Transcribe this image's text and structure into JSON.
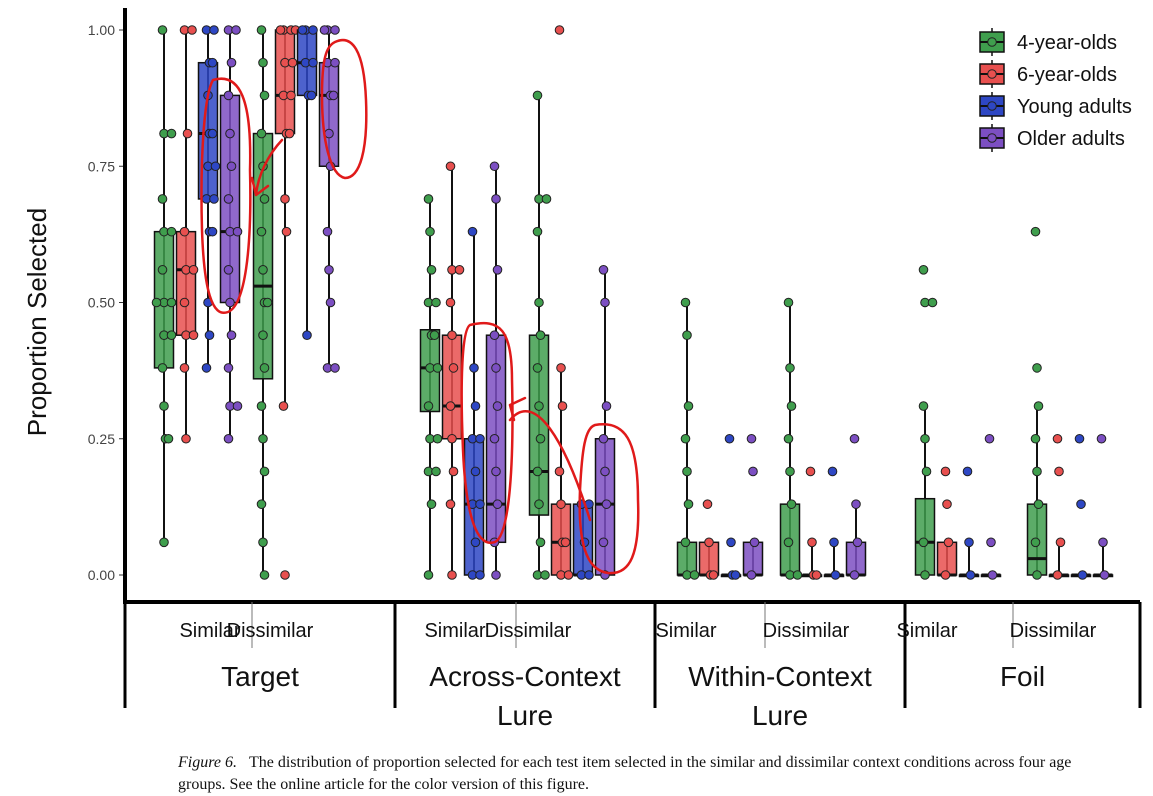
{
  "chart_data": {
    "type": "boxplot",
    "ylabel": "Proportion Selected",
    "ylim": [
      0,
      1
    ],
    "y_ticks": [
      0,
      0.25,
      0.5,
      0.75,
      1
    ],
    "y_tick_labels": [
      "0.00",
      "0.25",
      "0.50",
      "0.75",
      "1.00"
    ],
    "legend_position": "top-right",
    "series": [
      {
        "name": "4-year-olds",
        "color": "#3f9e4d"
      },
      {
        "name": "6-year-olds",
        "color": "#e8504f"
      },
      {
        "name": "Young adults",
        "color": "#2e47c4"
      },
      {
        "name": "Older adults",
        "color": "#7c4fc2"
      }
    ],
    "groups": [
      {
        "label": [
          "Target"
        ],
        "conditions": [
          {
            "label": "Similar",
            "boxes": [
              {
                "q1": 0.38,
                "median": 0.5,
                "q3": 0.63,
                "min": 0.06,
                "max": 1.0,
                "points": [
                  1.0,
                  0.81,
                  0.81,
                  0.69,
                  0.63,
                  0.63,
                  0.56,
                  0.5,
                  0.5,
                  0.5,
                  0.44,
                  0.44,
                  0.38,
                  0.31,
                  0.25,
                  0.25,
                  0.06
                ]
              },
              {
                "q1": 0.44,
                "median": 0.56,
                "q3": 0.63,
                "min": 0.25,
                "max": 1.0,
                "points": [
                  1.0,
                  1.0,
                  0.81,
                  0.63,
                  0.56,
                  0.56,
                  0.5,
                  0.44,
                  0.44,
                  0.38,
                  0.25
                ]
              },
              {
                "q1": 0.69,
                "median": 0.81,
                "q3": 0.94,
                "min": 0.38,
                "max": 1.0,
                "points": [
                  1.0,
                  1.0,
                  0.94,
                  0.94,
                  0.88,
                  0.81,
                  0.81,
                  0.75,
                  0.75,
                  0.69,
                  0.69,
                  0.63,
                  0.63,
                  0.5,
                  0.44,
                  0.38
                ]
              },
              {
                "q1": 0.5,
                "median": 0.63,
                "q3": 0.88,
                "min": 0.25,
                "max": 1.0,
                "points": [
                  1.0,
                  1.0,
                  0.94,
                  0.88,
                  0.81,
                  0.75,
                  0.69,
                  0.63,
                  0.63,
                  0.56,
                  0.5,
                  0.44,
                  0.38,
                  0.31,
                  0.31,
                  0.25
                ]
              }
            ]
          },
          {
            "label": "Dissimilar",
            "boxes": [
              {
                "q1": 0.36,
                "median": 0.53,
                "q3": 0.81,
                "min": 0.0,
                "max": 1.0,
                "points": [
                  1.0,
                  0.94,
                  0.88,
                  0.81,
                  0.75,
                  0.69,
                  0.63,
                  0.56,
                  0.5,
                  0.5,
                  0.44,
                  0.38,
                  0.31,
                  0.25,
                  0.19,
                  0.13,
                  0.06,
                  0.0
                ]
              },
              {
                "q1": 0.81,
                "median": 0.88,
                "q3": 1.0,
                "min": 0.31,
                "max": 1.0,
                "points": [
                  1.0,
                  1.0,
                  1.0,
                  1.0,
                  0.94,
                  0.94,
                  0.88,
                  0.88,
                  0.81,
                  0.81,
                  0.69,
                  0.63,
                  0.31,
                  0.0
                ]
              },
              {
                "q1": 0.88,
                "median": 0.94,
                "q3": 1.0,
                "min": 0.44,
                "max": 1.0,
                "points": [
                  1.0,
                  1.0,
                  1.0,
                  0.94,
                  0.94,
                  0.88,
                  0.88,
                  0.44
                ]
              },
              {
                "q1": 0.75,
                "median": 0.88,
                "q3": 0.94,
                "min": 0.38,
                "max": 1.0,
                "points": [
                  1.0,
                  1.0,
                  1.0,
                  0.94,
                  0.94,
                  0.88,
                  0.88,
                  0.81,
                  0.75,
                  0.63,
                  0.56,
                  0.5,
                  0.38,
                  0.38
                ]
              }
            ]
          }
        ]
      },
      {
        "label": [
          "Across-Context",
          "Lure"
        ],
        "conditions": [
          {
            "label": "Similar",
            "boxes": [
              {
                "q1": 0.3,
                "median": 0.38,
                "q3": 0.45,
                "min": 0.0,
                "max": 0.69,
                "points": [
                  0.69,
                  0.63,
                  0.56,
                  0.5,
                  0.5,
                  0.44,
                  0.44,
                  0.38,
                  0.38,
                  0.31,
                  0.25,
                  0.25,
                  0.19,
                  0.19,
                  0.13,
                  0.0
                ]
              },
              {
                "q1": 0.25,
                "median": 0.31,
                "q3": 0.44,
                "min": 0.0,
                "max": 0.75,
                "points": [
                  0.75,
                  0.56,
                  0.56,
                  0.5,
                  0.44,
                  0.38,
                  0.31,
                  0.25,
                  0.19,
                  0.13,
                  0.0
                ]
              },
              {
                "q1": 0.0,
                "median": 0.13,
                "q3": 0.25,
                "min": 0.0,
                "max": 0.63,
                "points": [
                  0.63,
                  0.38,
                  0.31,
                  0.25,
                  0.25,
                  0.19,
                  0.13,
                  0.13,
                  0.06,
                  0.0,
                  0.0
                ]
              },
              {
                "q1": 0.06,
                "median": 0.13,
                "q3": 0.44,
                "min": 0.0,
                "max": 0.75,
                "points": [
                  0.75,
                  0.69,
                  0.56,
                  0.44,
                  0.38,
                  0.31,
                  0.25,
                  0.19,
                  0.13,
                  0.06,
                  0.0
                ]
              }
            ]
          },
          {
            "label": "Dissimilar",
            "boxes": [
              {
                "q1": 0.11,
                "median": 0.19,
                "q3": 0.44,
                "min": 0.0,
                "max": 0.88,
                "points": [
                  0.88,
                  0.69,
                  0.69,
                  0.63,
                  0.5,
                  0.44,
                  0.38,
                  0.31,
                  0.25,
                  0.19,
                  0.13,
                  0.06,
                  0.0,
                  0.0
                ]
              },
              {
                "q1": 0.0,
                "median": 0.06,
                "q3": 0.13,
                "min": 0.0,
                "max": 0.38,
                "points": [
                  1.0,
                  0.38,
                  0.31,
                  0.19,
                  0.13,
                  0.06,
                  0.06,
                  0.0,
                  0.0
                ]
              },
              {
                "q1": 0.0,
                "median": 0.0,
                "q3": 0.13,
                "min": 0.0,
                "max": 0.13,
                "points": [
                  0.13,
                  0.13,
                  0.06,
                  0.0,
                  0.0
                ]
              },
              {
                "q1": 0.0,
                "median": 0.13,
                "q3": 0.25,
                "min": 0.0,
                "max": 0.56,
                "points": [
                  0.56,
                  0.5,
                  0.31,
                  0.25,
                  0.19,
                  0.13,
                  0.06,
                  0.0
                ]
              }
            ]
          }
        ]
      },
      {
        "label": [
          "Within-Context",
          "Lure"
        ],
        "conditions": [
          {
            "label": "Similar",
            "boxes": [
              {
                "q1": 0.0,
                "median": 0.0,
                "q3": 0.06,
                "min": 0.0,
                "max": 0.5,
                "points": [
                  0.5,
                  0.44,
                  0.31,
                  0.25,
                  0.19,
                  0.13,
                  0.06,
                  0.0,
                  0.0
                ]
              },
              {
                "q1": 0.0,
                "median": 0.0,
                "q3": 0.06,
                "min": 0.0,
                "max": 0.06,
                "points": [
                  0.13,
                  0.06,
                  0.0,
                  0.0
                ]
              },
              {
                "q1": 0.0,
                "median": 0.0,
                "q3": 0.0,
                "min": 0.0,
                "max": 0.0,
                "points": [
                  0.25,
                  0.06,
                  0.0,
                  0.0
                ]
              },
              {
                "q1": 0.0,
                "median": 0.0,
                "q3": 0.06,
                "min": 0.0,
                "max": 0.06,
                "points": [
                  0.25,
                  0.19,
                  0.06,
                  0.0
                ]
              }
            ]
          },
          {
            "label": "Dissimilar",
            "boxes": [
              {
                "q1": 0.0,
                "median": 0.0,
                "q3": 0.13,
                "min": 0.0,
                "max": 0.5,
                "points": [
                  0.5,
                  0.38,
                  0.31,
                  0.25,
                  0.19,
                  0.13,
                  0.06,
                  0.0,
                  0.0
                ]
              },
              {
                "q1": 0.0,
                "median": 0.0,
                "q3": 0.0,
                "min": 0.0,
                "max": 0.06,
                "points": [
                  0.19,
                  0.06,
                  0.0,
                  0.0
                ]
              },
              {
                "q1": 0.0,
                "median": 0.0,
                "q3": 0.0,
                "min": 0.0,
                "max": 0.06,
                "points": [
                  0.19,
                  0.06,
                  0.0
                ]
              },
              {
                "q1": 0.0,
                "median": 0.0,
                "q3": 0.06,
                "min": 0.0,
                "max": 0.13,
                "points": [
                  0.25,
                  0.13,
                  0.06,
                  0.0
                ]
              }
            ]
          }
        ]
      },
      {
        "label": [
          "Foil"
        ],
        "conditions": [
          {
            "label": "Similar",
            "boxes": [
              {
                "q1": 0.0,
                "median": 0.06,
                "q3": 0.14,
                "min": 0.0,
                "max": 0.31,
                "points": [
                  0.56,
                  0.5,
                  0.5,
                  0.31,
                  0.25,
                  0.19,
                  0.06,
                  0.0
                ]
              },
              {
                "q1": 0.0,
                "median": 0.0,
                "q3": 0.06,
                "min": 0.0,
                "max": 0.06,
                "points": [
                  0.19,
                  0.13,
                  0.06,
                  0.0
                ]
              },
              {
                "q1": 0.0,
                "median": 0.0,
                "q3": 0.0,
                "min": 0.0,
                "max": 0.06,
                "points": [
                  0.19,
                  0.06,
                  0.0
                ]
              },
              {
                "q1": 0.0,
                "median": 0.0,
                "q3": 0.0,
                "min": 0.0,
                "max": 0.0,
                "points": [
                  0.25,
                  0.06,
                  0.0
                ]
              }
            ]
          },
          {
            "label": "Dissimilar",
            "boxes": [
              {
                "q1": 0.0,
                "median": 0.03,
                "q3": 0.13,
                "min": 0.0,
                "max": 0.31,
                "points": [
                  0.63,
                  0.38,
                  0.31,
                  0.25,
                  0.19,
                  0.13,
                  0.06,
                  0.0
                ]
              },
              {
                "q1": 0.0,
                "median": 0.0,
                "q3": 0.0,
                "min": 0.0,
                "max": 0.06,
                "points": [
                  0.25,
                  0.19,
                  0.06,
                  0.0
                ]
              },
              {
                "q1": 0.0,
                "median": 0.0,
                "q3": 0.0,
                "min": 0.0,
                "max": 0.0,
                "points": [
                  0.25,
                  0.13,
                  0.0
                ]
              },
              {
                "q1": 0.0,
                "median": 0.0,
                "q3": 0.0,
                "min": 0.0,
                "max": 0.06,
                "points": [
                  0.25,
                  0.06,
                  0.0
                ]
              }
            ]
          }
        ]
      }
    ]
  },
  "caption": {
    "figure_label": "Figure 6.",
    "text": "The distribution of proportion selected for each test item selected in the similar and dissimilar context conditions across four age groups. See the online article for the color version of this figure."
  }
}
